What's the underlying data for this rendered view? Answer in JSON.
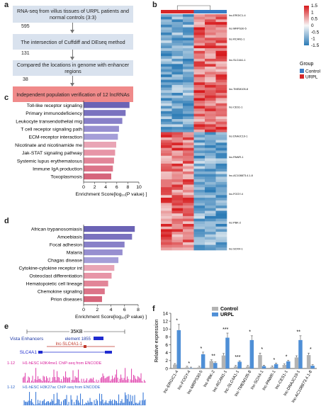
{
  "panels": {
    "a": "a",
    "b": "b",
    "c": "c",
    "d": "d",
    "e": "e",
    "f": "f"
  },
  "flowchart": {
    "box1": "RNA-seq from villus tissues of URPL patients and normal controls (3:3)",
    "n1": "595",
    "box2": "The intersection of Cuffdiff and DEseq method",
    "n2": "131",
    "box3": "Compared the locations in genome with enhancer regions",
    "n3": "38",
    "box4": "Independent population verification of 12 lncRNAs"
  },
  "chart_data": [
    {
      "type": "bar",
      "panel": "c",
      "orientation": "horizontal",
      "categories": [
        "Toll-like receptor signaling",
        "Primary immunodeficiency",
        "Leukocyte transendothelial mig",
        "T cell receptor signaling path",
        "ECM-receptor interaction",
        "Nicotinate and nicotinamide me",
        "Jak-STAT signaling pathway",
        "Systemic lupus erythematosus",
        "Immune IgA production",
        "Toxoplasmosis"
      ],
      "values": [
        8.3,
        7.6,
        7.0,
        6.4,
        6.2,
        5.9,
        5.7,
        5.5,
        5.3,
        5.0
      ],
      "colors": [
        "#6b63b5",
        "#7a72bf",
        "#8880c8",
        "#978fd0",
        "#a59ed8",
        "#e9a5b5",
        "#e795a7",
        "#e28598",
        "#dc7489",
        "#d6657b"
      ],
      "xlim": [
        0,
        10
      ],
      "xticks": [
        "0",
        "2",
        "4",
        "6",
        "8",
        "10"
      ],
      "xlabel": "Enrichment Score[log₁₀(P value) ]"
    },
    {
      "type": "bar",
      "panel": "d",
      "orientation": "horizontal",
      "categories": [
        "African trypanosomiasis",
        "Amoebiasis",
        "Focal adhesion",
        "Malaria",
        "Chagas disease",
        "Cytokine-cytokine receptor int",
        "Osteoclast differentiation",
        "Hematopoietic cell lineage",
        "Chemokine signaling",
        "Prion diseases"
      ],
      "values": [
        7.5,
        7.1,
        6.0,
        5.7,
        5.1,
        4.5,
        4.1,
        3.6,
        3.1,
        2.7
      ],
      "colors": [
        "#6b63b5",
        "#7a72bf",
        "#8880c8",
        "#978fd0",
        "#a59ed8",
        "#e9a5b5",
        "#e795a7",
        "#e28598",
        "#dc7489",
        "#d6657b"
      ],
      "xlim": [
        0,
        8
      ],
      "xticks": [
        "0",
        "2",
        "4",
        "6",
        "8"
      ],
      "xlabel": "Enrichment Score[log₁₀(P value) ]"
    },
    {
      "type": "heatmap",
      "panel": "b",
      "columns": 6,
      "column_groups": [
        "URPL",
        "URPL",
        "URPL",
        "Control",
        "Control",
        "Control"
      ],
      "row_labels": [
        "lnc-ERGIC1-4",
        "lnc-MRPS30-5",
        "lnc-RCAN1-1",
        "lnc-SLC4A1-1",
        "lnc-TMEM105-8",
        "lnc-CES1-1",
        "lnc-DNAJC19-1",
        "lnc-PAWR-1",
        "lnc-AC108873.4.1-8",
        "lnc-FOGY-4",
        "lnc-PBK-2",
        "lnc-SOX4-1"
      ],
      "scale": {
        "max": 1.5,
        "ticks": [
          "1.5",
          "1",
          "0.5",
          "0",
          "-0.5",
          "-1",
          "-1.5"
        ],
        "high": "#d7191c",
        "mid": "#f7f7f7",
        "low": "#2c7bb6"
      },
      "legend": {
        "title": "Group",
        "items": [
          {
            "label": "Control",
            "color": "#3a7cc4"
          },
          {
            "label": "URPL",
            "color": "#d62728"
          }
        ]
      }
    },
    {
      "type": "bar",
      "panel": "f",
      "categories": [
        "lnc-ERGIC1-4",
        "lnc-FOGY-4",
        "lnc-MRPS30-5",
        "lnc-PBK-2",
        "lnc-RCAN1-1",
        "lnc-SLC4A1-1",
        "lnc-TMEM105-8",
        "lnc-SOX4-1",
        "lnc-PAWR-1",
        "lnc-CES1-1",
        "lnc-DNAJC19-1",
        "lnc-AC108873.4.1-8"
      ],
      "series": [
        {
          "name": "Control",
          "color": "#b3b3b3",
          "values": [
            1.0,
            0.3,
            0.3,
            1.9,
            3.3,
            0.5,
            0.5,
            3.4,
            0.4,
            0.9,
            2.8,
            3.4
          ]
        },
        {
          "name": "URPL",
          "color": "#4f8fd6",
          "values": [
            9.7,
            0.1,
            3.6,
            1.4,
            7.8,
            1.7,
            7.2,
            0.6,
            1.1,
            1.8,
            7.2,
            0.7
          ]
        }
      ],
      "significance": [
        "*",
        "*",
        "*",
        "**",
        "***",
        "***",
        "*",
        "*",
        "*",
        "*",
        "**",
        "*"
      ],
      "ylim": [
        0,
        14
      ],
      "yticks": [
        "0",
        "2",
        "4",
        "6",
        "8",
        "10",
        "12",
        "14"
      ],
      "ylabel": "Relative expression"
    }
  ],
  "genome_browser": {
    "scale_label": "35KB",
    "vista_label": "Vista Enhancers",
    "element_label": "element  1855",
    "lnc_gene": "lnc-SLC4A1-1",
    "gene": "SLC4A1",
    "track1_range": "1-12",
    "track1_label": "H1-hESC H3K4me1 ChIP-seq from ENCODE",
    "track2_range": "1-12",
    "track2_label": "H1-hESC H3K27ac ChIP-seq from ENCODE"
  }
}
